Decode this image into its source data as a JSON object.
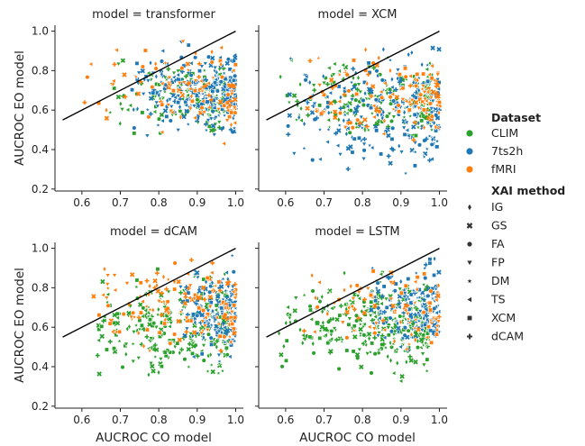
{
  "colors": {
    "CLIM": "#2ca02c",
    "7ts2h": "#1f77b4",
    "fMRI": "#ff7f0e",
    "line": "#000000",
    "axis": "#222222"
  },
  "legend": {
    "dataset_title": "Dataset",
    "datasets": [
      "CLIM",
      "7ts2h",
      "fMRI"
    ],
    "method_title": "XAI method",
    "methods": [
      {
        "label": "IG",
        "marker": "diamond"
      },
      {
        "label": "GS",
        "marker": "x-cross"
      },
      {
        "label": "FA",
        "marker": "circle"
      },
      {
        "label": "FP",
        "marker": "triangle-down"
      },
      {
        "label": "DM",
        "marker": "star"
      },
      {
        "label": "TS",
        "marker": "triangle-left"
      },
      {
        "label": "XCM",
        "marker": "square"
      },
      {
        "label": "dCAM",
        "marker": "plus"
      }
    ]
  },
  "chart_data": [
    {
      "type": "scatter",
      "title": "model = transformer",
      "xlabel": "",
      "ylabel": "AUCROC EO model",
      "xlim": [
        0.53,
        1.02
      ],
      "ylim": [
        0.19,
        1.03
      ],
      "xticks": [
        "0.6",
        "0.7",
        "0.8",
        "0.9",
        "1.0"
      ],
      "yticks": [
        "0.2",
        "0.4",
        "0.6",
        "0.8",
        "1.0"
      ],
      "reference_line": {
        "x": [
          0.55,
          1.0
        ],
        "y": [
          0.55,
          1.0
        ]
      },
      "clusters": [
        {
          "dataset": "CLIM",
          "x_range": [
            0.67,
            0.97
          ],
          "y_range": [
            0.42,
            0.92
          ],
          "n": 160
        },
        {
          "dataset": "7ts2h",
          "x_range": [
            0.73,
            1.0
          ],
          "y_range": [
            0.42,
            0.98
          ],
          "n": 260
        },
        {
          "dataset": "fMRI",
          "x_range": [
            0.6,
            1.0
          ],
          "y_range": [
            0.38,
            0.99
          ],
          "n": 110
        }
      ]
    },
    {
      "type": "scatter",
      "title": "model = XCM",
      "xlabel": "",
      "ylabel": "",
      "xlim": [
        0.53,
        1.02
      ],
      "ylim": [
        0.19,
        1.03
      ],
      "xticks": [
        "0.6",
        "0.7",
        "0.8",
        "0.9",
        "1.0"
      ],
      "yticks": [
        "0.2",
        "0.4",
        "0.6",
        "0.8",
        "1.0"
      ],
      "reference_line": {
        "x": [
          0.55,
          1.0
        ],
        "y": [
          0.55,
          1.0
        ]
      },
      "clusters": [
        {
          "dataset": "CLIM",
          "x_range": [
            0.58,
            0.98
          ],
          "y_range": [
            0.4,
            0.9
          ],
          "n": 190
        },
        {
          "dataset": "7ts2h",
          "x_range": [
            0.6,
            1.0
          ],
          "y_range": [
            0.22,
            0.98
          ],
          "n": 250
        },
        {
          "dataset": "fMRI",
          "x_range": [
            0.65,
            1.0
          ],
          "y_range": [
            0.35,
            0.99
          ],
          "n": 130
        }
      ]
    },
    {
      "type": "scatter",
      "title": "model = dCAM",
      "xlabel": "AUCROC CO model",
      "ylabel": "AUCROC EO model",
      "xlim": [
        0.53,
        1.02
      ],
      "ylim": [
        0.19,
        1.03
      ],
      "xticks": [
        "0.6",
        "0.7",
        "0.8",
        "0.9",
        "1.0"
      ],
      "yticks": [
        "0.2",
        "0.4",
        "0.6",
        "0.8",
        "1.0"
      ],
      "reference_line": {
        "x": [
          0.55,
          1.0
        ],
        "y": [
          0.55,
          1.0
        ]
      },
      "clusters": [
        {
          "dataset": "CLIM",
          "x_range": [
            0.63,
            0.98
          ],
          "y_range": [
            0.28,
            0.92
          ],
          "n": 270
        },
        {
          "dataset": "7ts2h",
          "x_range": [
            0.85,
            1.0
          ],
          "y_range": [
            0.36,
            0.98
          ],
          "n": 160
        },
        {
          "dataset": "fMRI",
          "x_range": [
            0.63,
            1.0
          ],
          "y_range": [
            0.42,
            0.99
          ],
          "n": 150
        }
      ]
    },
    {
      "type": "scatter",
      "title": "model = LSTM",
      "xlabel": "AUCROC CO model",
      "ylabel": "",
      "xlim": [
        0.53,
        1.02
      ],
      "ylim": [
        0.19,
        1.03
      ],
      "xticks": [
        "0.6",
        "0.7",
        "0.8",
        "0.9",
        "1.0"
      ],
      "yticks": [
        "0.2",
        "0.4",
        "0.6",
        "0.8",
        "1.0"
      ],
      "reference_line": {
        "x": [
          0.55,
          1.0
        ],
        "y": [
          0.55,
          1.0
        ]
      },
      "clusters": [
        {
          "dataset": "CLIM",
          "x_range": [
            0.58,
            0.97
          ],
          "y_range": [
            0.28,
            0.95
          ],
          "n": 320
        },
        {
          "dataset": "7ts2h",
          "x_range": [
            0.82,
            1.0
          ],
          "y_range": [
            0.44,
            0.98
          ],
          "n": 160
        },
        {
          "dataset": "fMRI",
          "x_range": [
            0.63,
            1.0
          ],
          "y_range": [
            0.4,
            0.99
          ],
          "n": 90
        }
      ]
    }
  ]
}
